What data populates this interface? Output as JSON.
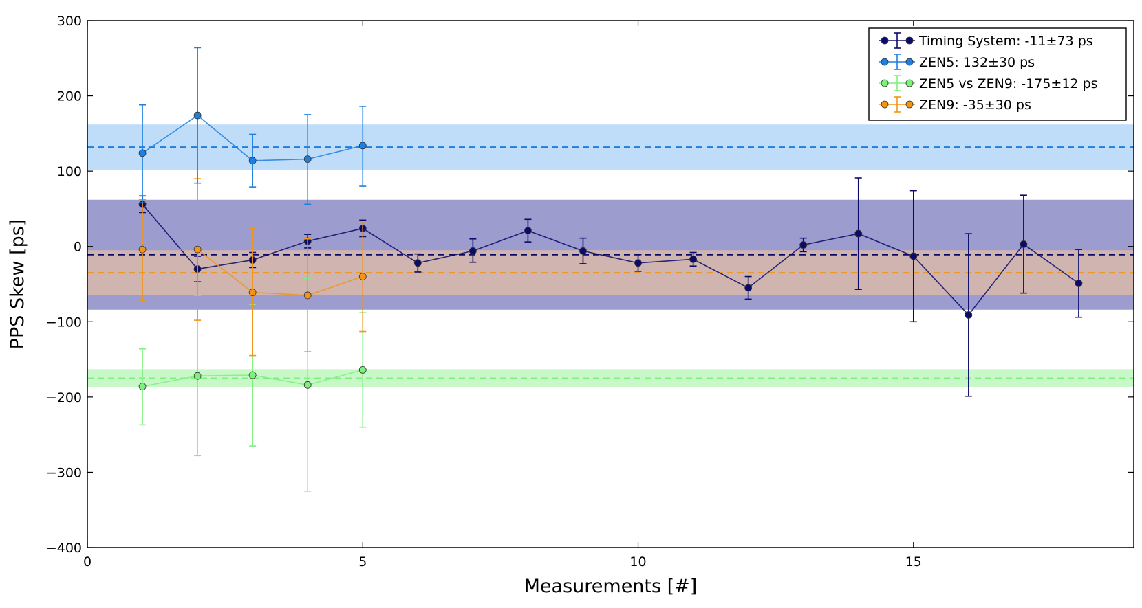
{
  "chart_data": {
    "type": "scatter",
    "xlabel": "Measurements [#]",
    "ylabel": "PPS Skew [ps]",
    "xlim": [
      0,
      19
    ],
    "ylim": [
      -400,
      300
    ],
    "xticks": [
      0,
      5,
      10,
      15
    ],
    "xtick_labels": [
      "0",
      "5",
      "10",
      "15"
    ],
    "yticks": [
      300,
      200,
      100,
      0,
      -100,
      -200,
      -300,
      -400
    ],
    "ytick_labels": [
      "300",
      "200",
      "100",
      "0",
      "−100",
      "−200",
      "−300",
      "−400"
    ],
    "grid": false,
    "legend_position": "top-right",
    "series": [
      {
        "name": "Timing System: -11±73 ps",
        "color": "#0b0b6b",
        "marker_color": "#0b0b6b",
        "mean": -11,
        "band": [
          -84,
          62
        ],
        "band_color": "#7b7bbf",
        "points": [
          {
            "x": 1,
            "y": 56,
            "lo": 45,
            "hi": 67
          },
          {
            "x": 2,
            "y": -30,
            "lo": -47,
            "hi": -13
          },
          {
            "x": 3,
            "y": -18,
            "lo": -28,
            "hi": -8
          },
          {
            "x": 4,
            "y": 7,
            "lo": -2,
            "hi": 16
          },
          {
            "x": 5,
            "y": 24,
            "lo": 13,
            "hi": 35
          },
          {
            "x": 6,
            "y": -22,
            "lo": -34,
            "hi": -10
          },
          {
            "x": 7,
            "y": -6,
            "lo": -21,
            "hi": 10
          },
          {
            "x": 8,
            "y": 21,
            "lo": 6,
            "hi": 36
          },
          {
            "x": 9,
            "y": -6,
            "lo": -23,
            "hi": 11
          },
          {
            "x": 10,
            "y": -22,
            "lo": -33,
            "hi": -11
          },
          {
            "x": 11,
            "y": -17,
            "lo": -26,
            "hi": -8
          },
          {
            "x": 12,
            "y": -55,
            "lo": -70,
            "hi": -40
          },
          {
            "x": 13,
            "y": 2,
            "lo": -7,
            "hi": 11
          },
          {
            "x": 14,
            "y": 17,
            "lo": -57,
            "hi": 91
          },
          {
            "x": 15,
            "y": -13,
            "lo": -100,
            "hi": 74
          },
          {
            "x": 16,
            "y": -91,
            "lo": -199,
            "hi": 17
          },
          {
            "x": 17,
            "y": 3,
            "lo": -62,
            "hi": 68
          },
          {
            "x": 18,
            "y": -49,
            "lo": -94,
            "hi": -4
          }
        ]
      },
      {
        "name": "ZEN5: 132±30 ps",
        "color": "#1f7fe0",
        "marker_color": "#1f7fe0",
        "mean": 132,
        "band": [
          102,
          162
        ],
        "band_color": "#a9d2f7",
        "points": [
          {
            "x": 1,
            "y": 124,
            "lo": 58,
            "hi": 188
          },
          {
            "x": 2,
            "y": 174,
            "lo": 84,
            "hi": 264
          },
          {
            "x": 3,
            "y": 114,
            "lo": 79,
            "hi": 149
          },
          {
            "x": 4,
            "y": 116,
            "lo": 56,
            "hi": 175
          },
          {
            "x": 5,
            "y": 134,
            "lo": 80,
            "hi": 186
          }
        ]
      },
      {
        "name": "ZEN5 vs ZEN9: -175±12 ps",
        "color": "#7ef07e",
        "marker_color": "#7ef07e",
        "mean": -175,
        "band": [
          -187,
          -163
        ],
        "band_color": "#b6f5b6",
        "points": [
          {
            "x": 1,
            "y": -186,
            "lo": -237,
            "hi": -136
          },
          {
            "x": 2,
            "y": -172,
            "lo": -278,
            "hi": -65
          },
          {
            "x": 3,
            "y": -171,
            "lo": -265,
            "hi": -77
          },
          {
            "x": 4,
            "y": -184,
            "lo": -325,
            "hi": -43
          },
          {
            "x": 5,
            "y": -164,
            "lo": -240,
            "hi": -88
          }
        ]
      },
      {
        "name": "ZEN9: -35±30 ps",
        "color": "#f29417",
        "marker_color": "#f29417",
        "mean": -35,
        "band": [
          -65,
          -5
        ],
        "band_color": "#f2c59a",
        "points": [
          {
            "x": 1,
            "y": -4,
            "lo": -72,
            "hi": 62
          },
          {
            "x": 2,
            "y": -4,
            "lo": -98,
            "hi": 90
          },
          {
            "x": 3,
            "y": -61,
            "lo": -145,
            "hi": 24
          },
          {
            "x": 4,
            "y": -65,
            "lo": -140,
            "hi": 10
          },
          {
            "x": 5,
            "y": -40,
            "lo": -113,
            "hi": 33
          }
        ]
      }
    ]
  }
}
